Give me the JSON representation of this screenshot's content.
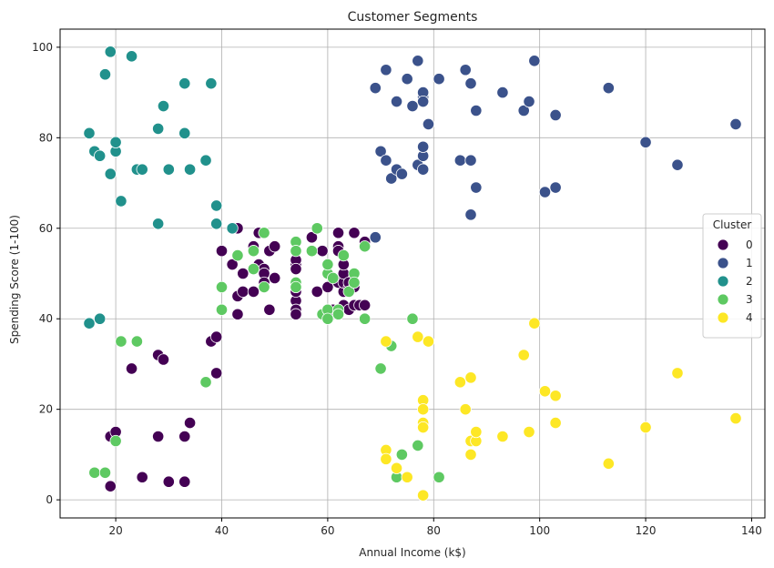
{
  "chart_data": {
    "type": "scatter",
    "title": "Customer Segments",
    "xlabel": "Annual Income (k$)",
    "ylabel": "Spending Score (1-100)",
    "xlim": [
      9.5,
      142.5
    ],
    "ylim": [
      -4,
      104
    ],
    "xticks": [
      20,
      40,
      60,
      80,
      100,
      120,
      140
    ],
    "yticks": [
      0,
      20,
      40,
      60,
      80,
      100
    ],
    "grid": true,
    "legend": {
      "title": "Cluster",
      "placement": "center-right",
      "entries": [
        "0",
        "1",
        "2",
        "3",
        "4"
      ]
    },
    "series": [
      {
        "name": "0",
        "color": "#440154",
        "points": [
          [
            19,
            3
          ],
          [
            19,
            14
          ],
          [
            20,
            15
          ],
          [
            23,
            29
          ],
          [
            25,
            5
          ],
          [
            28,
            14
          ],
          [
            28,
            32
          ],
          [
            29,
            31
          ],
          [
            30,
            4
          ],
          [
            33,
            4
          ],
          [
            33,
            14
          ],
          [
            34,
            17
          ],
          [
            38,
            35
          ],
          [
            39,
            28
          ],
          [
            39,
            36
          ],
          [
            40,
            55
          ],
          [
            42,
            52
          ],
          [
            43,
            45
          ],
          [
            43,
            41
          ],
          [
            43,
            60
          ],
          [
            44,
            50
          ],
          [
            44,
            46
          ],
          [
            46,
            46
          ],
          [
            46,
            56
          ],
          [
            47,
            52
          ],
          [
            47,
            59
          ],
          [
            48,
            51
          ],
          [
            48,
            50
          ],
          [
            48,
            48
          ],
          [
            49,
            42
          ],
          [
            49,
            55
          ],
          [
            50,
            49
          ],
          [
            50,
            56
          ],
          [
            54,
            52
          ],
          [
            54,
            55
          ],
          [
            54,
            44
          ],
          [
            54,
            42
          ],
          [
            54,
            41
          ],
          [
            54,
            46
          ],
          [
            54,
            53
          ],
          [
            54,
            51
          ],
          [
            57,
            58
          ],
          [
            58,
            46
          ],
          [
            59,
            55
          ],
          [
            60,
            47
          ],
          [
            61,
            42
          ],
          [
            62,
            59
          ],
          [
            62,
            56
          ],
          [
            62,
            55
          ],
          [
            62,
            48
          ],
          [
            62,
            41
          ],
          [
            63,
            43
          ],
          [
            63,
            46
          ],
          [
            63,
            48
          ],
          [
            63,
            50
          ],
          [
            63,
            52
          ],
          [
            64,
            42
          ],
          [
            64,
            47
          ],
          [
            64,
            48
          ],
          [
            65,
            59
          ],
          [
            65,
            43
          ],
          [
            65,
            47
          ],
          [
            66,
            43
          ],
          [
            67,
            43
          ],
          [
            67,
            57
          ]
        ]
      },
      {
        "name": "1",
        "color": "#3b528b",
        "points": [
          [
            69,
            58
          ],
          [
            69,
            91
          ],
          [
            70,
            77
          ],
          [
            71,
            95
          ],
          [
            71,
            75
          ],
          [
            72,
            71
          ],
          [
            73,
            73
          ],
          [
            73,
            88
          ],
          [
            74,
            72
          ],
          [
            75,
            93
          ],
          [
            76,
            87
          ],
          [
            77,
            97
          ],
          [
            77,
            74
          ],
          [
            78,
            89
          ],
          [
            78,
            90
          ],
          [
            78,
            88
          ],
          [
            78,
            73
          ],
          [
            78,
            76
          ],
          [
            78,
            78
          ],
          [
            79,
            83
          ],
          [
            81,
            93
          ],
          [
            85,
            75
          ],
          [
            86,
            95
          ],
          [
            87,
            92
          ],
          [
            87,
            75
          ],
          [
            87,
            63
          ],
          [
            88,
            86
          ],
          [
            88,
            69
          ],
          [
            93,
            90
          ],
          [
            97,
            86
          ],
          [
            98,
            88
          ],
          [
            99,
            97
          ],
          [
            101,
            68
          ],
          [
            103,
            85
          ],
          [
            103,
            69
          ],
          [
            113,
            91
          ],
          [
            120,
            79
          ],
          [
            126,
            74
          ],
          [
            137,
            83
          ]
        ]
      },
      {
        "name": "2",
        "color": "#21918c",
        "points": [
          [
            15,
            39
          ],
          [
            15,
            81
          ],
          [
            16,
            77
          ],
          [
            17,
            40
          ],
          [
            17,
            76
          ],
          [
            18,
            94
          ],
          [
            19,
            72
          ],
          [
            19,
            99
          ],
          [
            20,
            77
          ],
          [
            20,
            79
          ],
          [
            21,
            66
          ],
          [
            23,
            98
          ],
          [
            24,
            73
          ],
          [
            25,
            73
          ],
          [
            28,
            82
          ],
          [
            28,
            61
          ],
          [
            29,
            87
          ],
          [
            30,
            73
          ],
          [
            33,
            92
          ],
          [
            33,
            81
          ],
          [
            34,
            73
          ],
          [
            37,
            75
          ],
          [
            38,
            92
          ],
          [
            39,
            65
          ],
          [
            39,
            61
          ],
          [
            42,
            60
          ]
        ]
      },
      {
        "name": "3",
        "color": "#5ec962",
        "points": [
          [
            16,
            6
          ],
          [
            18,
            6
          ],
          [
            20,
            13
          ],
          [
            21,
            35
          ],
          [
            24,
            35
          ],
          [
            37,
            26
          ],
          [
            40,
            47
          ],
          [
            40,
            42
          ],
          [
            43,
            54
          ],
          [
            46,
            51
          ],
          [
            46,
            55
          ],
          [
            48,
            59
          ],
          [
            48,
            47
          ],
          [
            54,
            57
          ],
          [
            54,
            55
          ],
          [
            54,
            48
          ],
          [
            54,
            47
          ],
          [
            57,
            55
          ],
          [
            58,
            60
          ],
          [
            59,
            41
          ],
          [
            60,
            50
          ],
          [
            60,
            52
          ],
          [
            60,
            42
          ],
          [
            60,
            40
          ],
          [
            61,
            49
          ],
          [
            62,
            42
          ],
          [
            62,
            41
          ],
          [
            63,
            54
          ],
          [
            64,
            46
          ],
          [
            65,
            50
          ],
          [
            65,
            48
          ],
          [
            67,
            56
          ],
          [
            67,
            40
          ],
          [
            70,
            29
          ],
          [
            72,
            34
          ],
          [
            73,
            5
          ],
          [
            74,
            10
          ],
          [
            76,
            40
          ],
          [
            77,
            12
          ],
          [
            81,
            5
          ]
        ]
      },
      {
        "name": "4",
        "color": "#fde725",
        "points": [
          [
            71,
            35
          ],
          [
            71,
            11
          ],
          [
            71,
            9
          ],
          [
            73,
            7
          ],
          [
            75,
            5
          ],
          [
            77,
            36
          ],
          [
            78,
            22
          ],
          [
            78,
            20
          ],
          [
            78,
            17
          ],
          [
            78,
            16
          ],
          [
            78,
            1
          ],
          [
            79,
            35
          ],
          [
            85,
            26
          ],
          [
            86,
            20
          ],
          [
            87,
            27
          ],
          [
            87,
            13
          ],
          [
            87,
            10
          ],
          [
            88,
            13
          ],
          [
            88,
            15
          ],
          [
            93,
            14
          ],
          [
            97,
            32
          ],
          [
            98,
            15
          ],
          [
            99,
            39
          ],
          [
            101,
            24
          ],
          [
            103,
            23
          ],
          [
            103,
            17
          ],
          [
            113,
            8
          ],
          [
            120,
            16
          ],
          [
            126,
            28
          ],
          [
            137,
            18
          ]
        ]
      }
    ]
  }
}
